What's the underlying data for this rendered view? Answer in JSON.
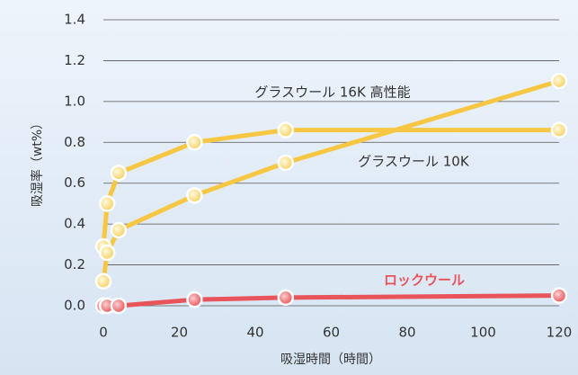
{
  "chart_data": {
    "type": "line",
    "x_label": "吸湿時間（時間）",
    "y_label": "吸湿率（wt%）",
    "xlim": [
      0,
      120
    ],
    "xticks": [
      0,
      20,
      40,
      60,
      80,
      100,
      120
    ],
    "ylim": [
      0,
      1.4
    ],
    "yticks": [
      {
        "value": 0,
        "label": "0.0"
      },
      0.2,
      0.4,
      0.6,
      0.8,
      {
        "value": 1,
        "label": "1.0"
      },
      1.2,
      1.4
    ],
    "grid": true,
    "series": [
      {
        "name": "グラスウール 16K 高性能",
        "color": "#f7c744",
        "x": [
          0,
          1,
          4,
          24,
          48,
          120
        ],
        "values": [
          0.29,
          0.5,
          0.65,
          0.8,
          0.86,
          0.86
        ]
      },
      {
        "name": "グラスウール 10K",
        "color": "#f7c744",
        "x": [
          0,
          1,
          4,
          24,
          48,
          120
        ],
        "values": [
          0.12,
          0.26,
          0.37,
          0.54,
          0.7,
          1.1
        ]
      },
      {
        "name": "ロックウール",
        "color": "#e9545a",
        "x": [
          0,
          1,
          4,
          24,
          48,
          120
        ],
        "values": [
          0,
          0,
          0,
          0.03,
          0.04,
          0.05
        ]
      }
    ]
  }
}
